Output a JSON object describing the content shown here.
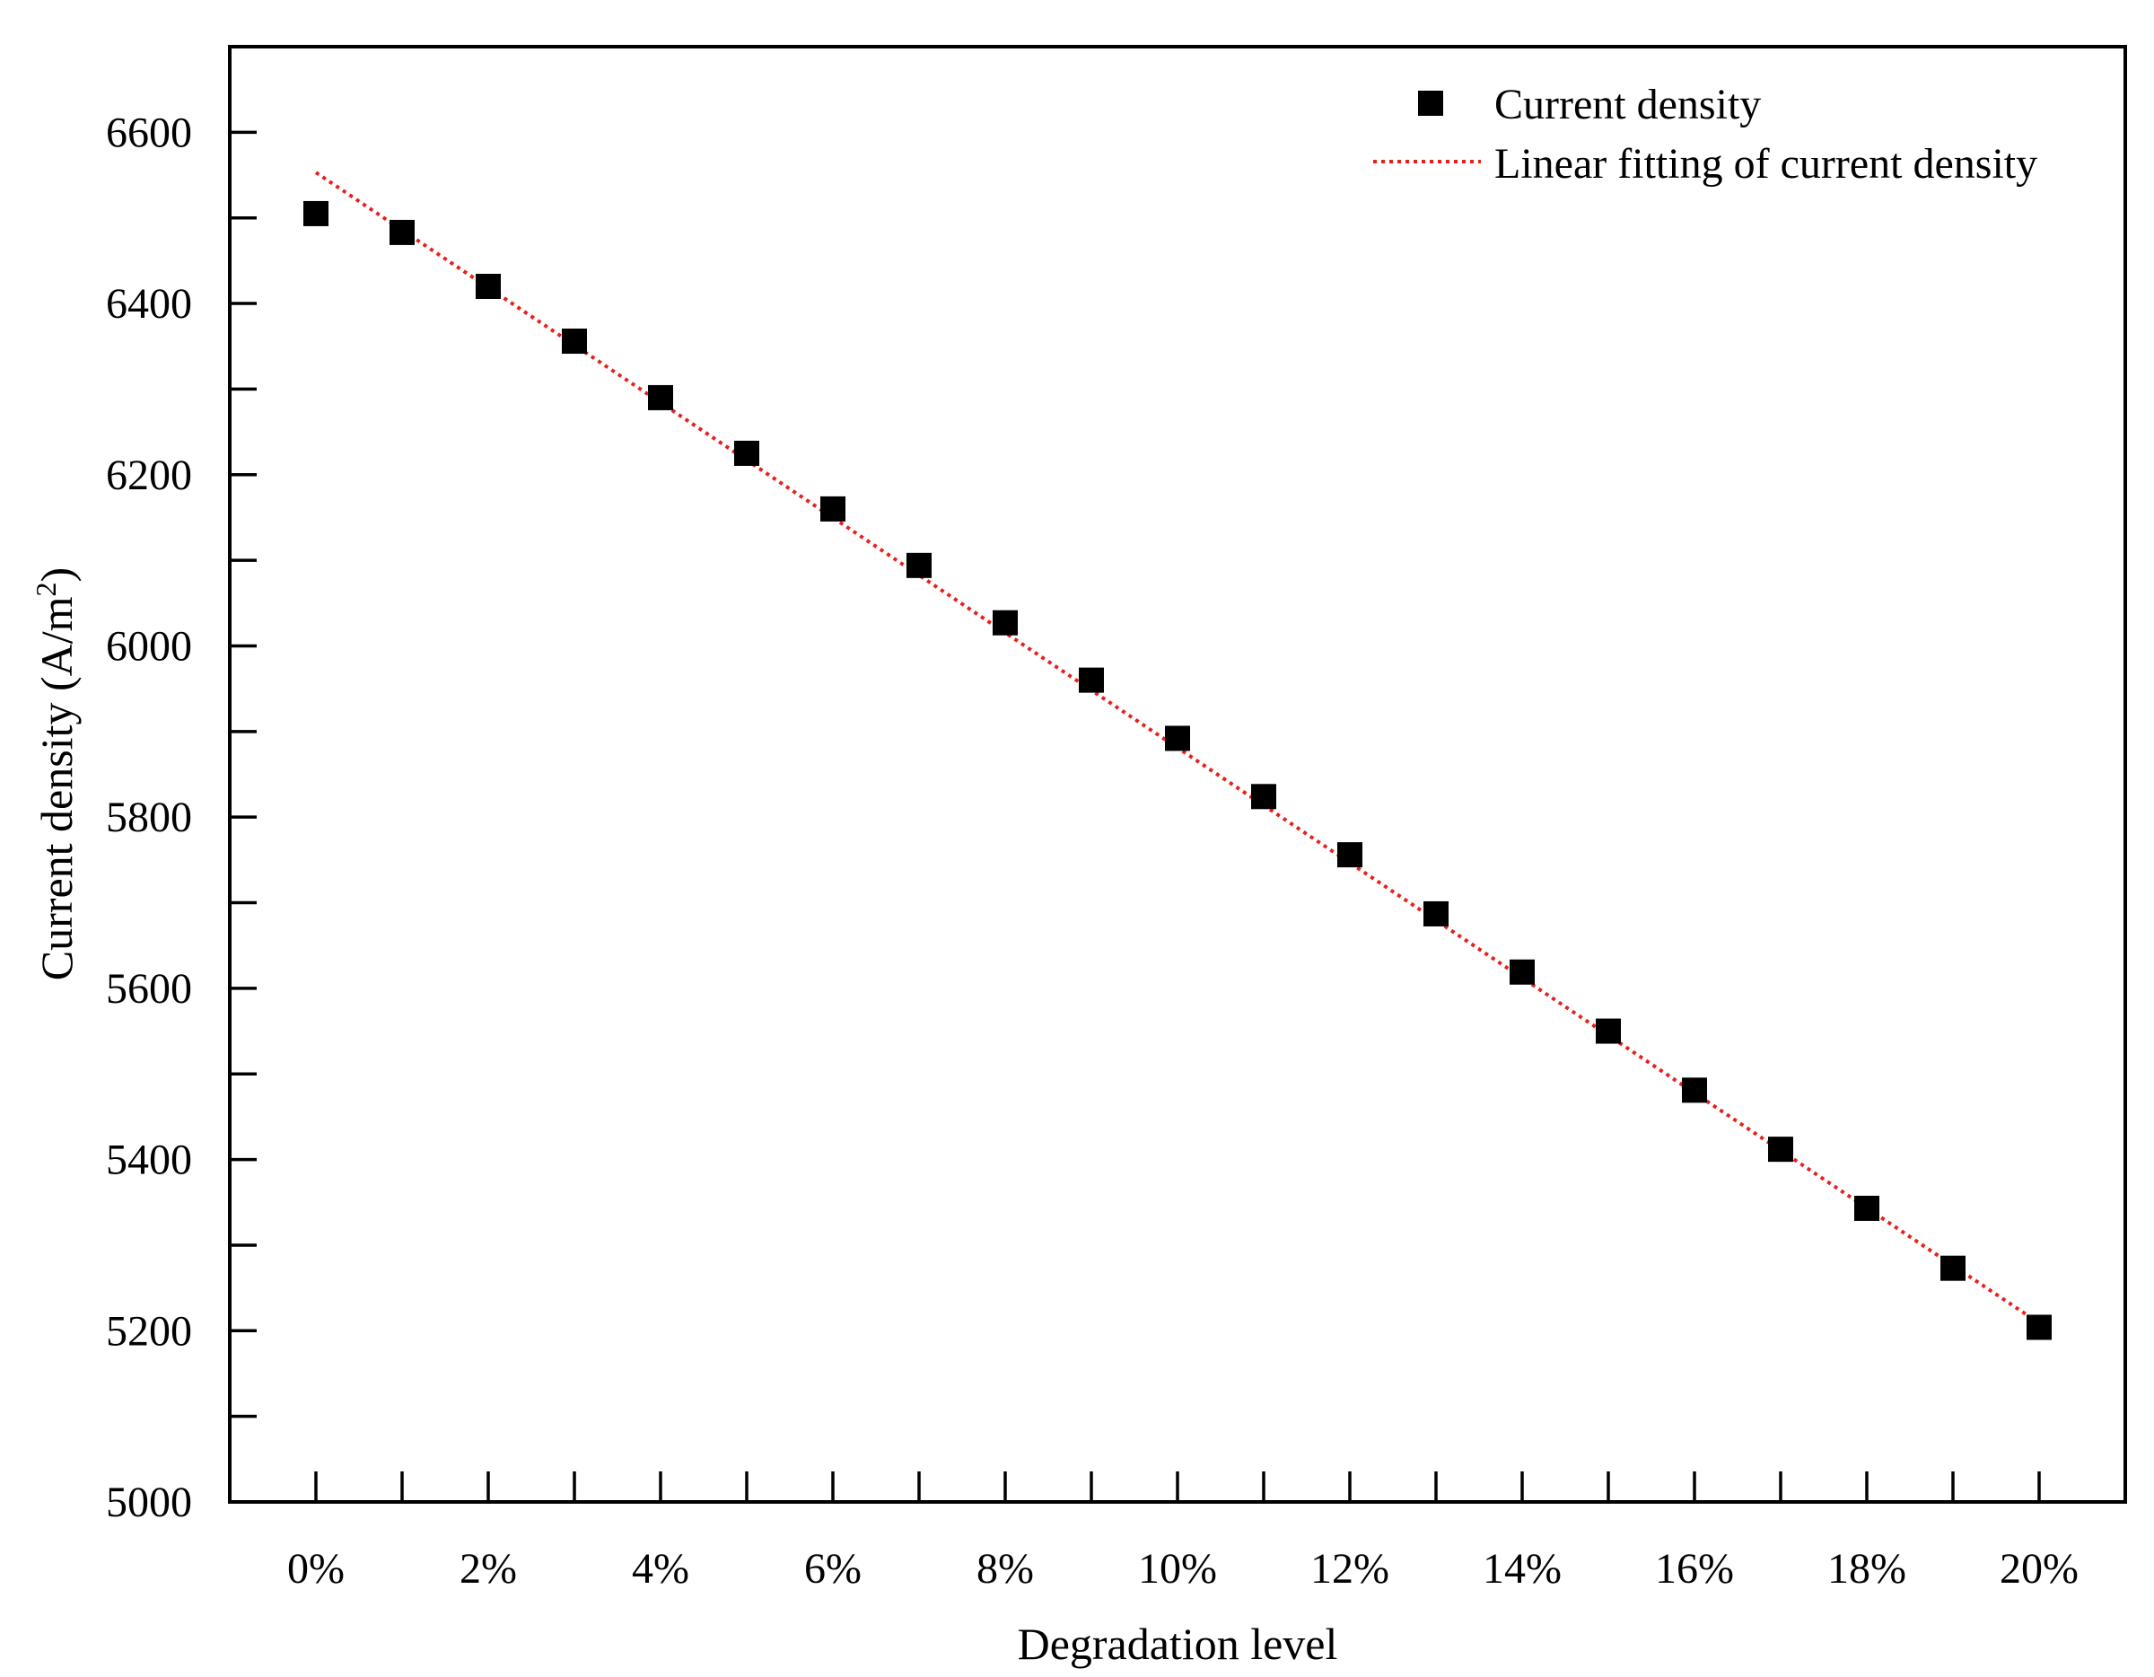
{
  "chart_data": {
    "type": "scatter",
    "title": "",
    "xlabel": "Degradation level",
    "ylabel_main": "Current density (A/m",
    "ylabel_sup": "2",
    "ylabel_close": ")",
    "x_unit_suffix": "%",
    "x_ticks_labeled": [
      0,
      2,
      4,
      6,
      8,
      10,
      12,
      14,
      16,
      18,
      20
    ],
    "x_ticks_minor": [
      1,
      3,
      5,
      7,
      9,
      11,
      13,
      15,
      17,
      19
    ],
    "y_ticks_labeled": [
      5000,
      5200,
      5400,
      5600,
      5800,
      6000,
      6200,
      6400,
      6600
    ],
    "y_ticks_minor": [
      5100,
      5300,
      5500,
      5700,
      5900,
      6100,
      6300,
      6500
    ],
    "xlim": [
      -1,
      21
    ],
    "ylim": [
      5000,
      6700
    ],
    "legend_position": "top-right",
    "series": [
      {
        "name": "Current density",
        "kind": "scatter",
        "marker": "square",
        "color": "#000000",
        "x": [
          0,
          1,
          2,
          3,
          4,
          5,
          6,
          7,
          8,
          9,
          10,
          11,
          12,
          13,
          14,
          15,
          16,
          17,
          18,
          19,
          20
        ],
        "values": [
          6505,
          6483,
          6420,
          6356,
          6290,
          6225,
          6160,
          6094,
          6027,
          5960,
          5892,
          5824,
          5756,
          5687,
          5619,
          5550,
          5481,
          5412,
          5343,
          5273,
          5204
        ]
      },
      {
        "name": "Linear fitting of current density",
        "kind": "line",
        "style": "dotted",
        "color": "#e8201c",
        "x": [
          0,
          20
        ],
        "values": [
          6553,
          5209
        ]
      }
    ]
  }
}
